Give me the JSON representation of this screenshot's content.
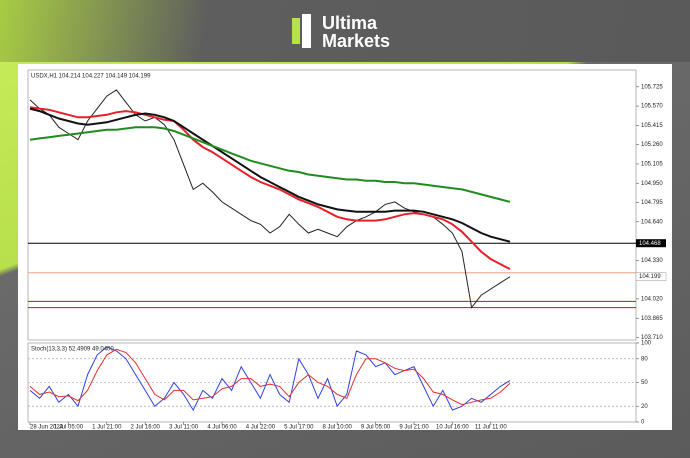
{
  "brand": {
    "line1": "Ultima",
    "line2": "Markets"
  },
  "chart_data": [
    {
      "type": "line",
      "title": "USDX,H1 104.214 104.227 104.149 104.199",
      "categories": [
        "28 Jun 2024",
        null,
        null,
        null,
        "1 Jul 05:00",
        null,
        null,
        null,
        "1 Jul 21:00",
        null,
        null,
        null,
        "2 Jul 16:00",
        null,
        null,
        null,
        "3 Jul 11:00",
        null,
        null,
        null,
        "4 Jul 06:00",
        null,
        null,
        null,
        "4 Jul 22:00",
        null,
        null,
        null,
        "5 Jul 17:00",
        null,
        null,
        null,
        "8 Jul 10:00",
        null,
        null,
        null,
        "9 Jul 05:00",
        null,
        null,
        null,
        "9 Jul 21:00",
        null,
        null,
        null,
        "10 Jul 16:00",
        null,
        null,
        null,
        "11 Jul 11:00",
        null,
        null
      ],
      "series": [
        {
          "color": "#222222",
          "width": 1,
          "values": [
            105.62,
            105.55,
            105.5,
            105.4,
            105.35,
            105.3,
            105.45,
            105.55,
            105.65,
            105.7,
            105.6,
            105.5,
            105.45,
            105.48,
            105.42,
            105.3,
            105.1,
            104.9,
            104.95,
            104.88,
            104.8,
            104.75,
            104.7,
            104.65,
            104.62,
            104.55,
            104.6,
            104.7,
            104.62,
            104.55,
            104.58,
            104.55,
            104.52,
            104.6,
            104.65,
            104.68,
            104.72,
            104.78,
            104.8,
            104.75,
            104.72,
            104.7,
            104.68,
            104.62,
            104.55,
            104.4,
            103.95,
            104.05,
            104.1,
            104.15,
            104.199
          ]
        },
        {
          "color": "#e8202a",
          "width": 2,
          "values": [
            105.56,
            105.55,
            105.54,
            105.52,
            105.5,
            105.48,
            105.48,
            105.49,
            105.5,
            105.52,
            105.53,
            105.52,
            105.5,
            105.48,
            105.46,
            105.45,
            105.38,
            105.3,
            105.24,
            105.2,
            105.15,
            105.1,
            105.05,
            105.0,
            104.96,
            104.93,
            104.9,
            104.86,
            104.82,
            104.79,
            104.76,
            104.72,
            104.68,
            104.66,
            104.65,
            104.65,
            104.65,
            104.66,
            104.68,
            104.7,
            104.71,
            104.7,
            104.68,
            104.66,
            104.62,
            104.56,
            104.48,
            104.4,
            104.34,
            104.3,
            104.26
          ]
        },
        {
          "color": "#111111",
          "width": 2,
          "values": [
            105.55,
            105.53,
            105.5,
            105.47,
            105.45,
            105.43,
            105.42,
            105.43,
            105.44,
            105.46,
            105.48,
            105.5,
            105.51,
            105.5,
            105.48,
            105.45,
            105.4,
            105.35,
            105.3,
            105.25,
            105.2,
            105.15,
            105.1,
            105.05,
            105.0,
            104.96,
            104.92,
            104.88,
            104.84,
            104.81,
            104.78,
            104.76,
            104.74,
            104.73,
            104.72,
            104.72,
            104.72,
            104.72,
            104.73,
            104.73,
            104.73,
            104.72,
            104.7,
            104.68,
            104.66,
            104.63,
            104.59,
            104.55,
            104.52,
            104.5,
            104.48
          ]
        },
        {
          "color": "#1e8c1e",
          "width": 2,
          "values": [
            105.3,
            105.31,
            105.32,
            105.33,
            105.34,
            105.35,
            105.36,
            105.37,
            105.38,
            105.38,
            105.39,
            105.4,
            105.4,
            105.4,
            105.39,
            105.37,
            105.34,
            105.31,
            105.28,
            105.25,
            105.22,
            105.19,
            105.16,
            105.13,
            105.11,
            105.09,
            105.07,
            105.05,
            105.04,
            105.02,
            105.01,
            105.0,
            104.99,
            104.98,
            104.98,
            104.97,
            104.97,
            104.96,
            104.96,
            104.95,
            104.95,
            104.94,
            104.93,
            104.92,
            104.91,
            104.9,
            104.88,
            104.86,
            104.84,
            104.82,
            104.8
          ]
        }
      ],
      "levels": [
        {
          "value": 104.468,
          "color": "#000000",
          "label": "104.468"
        },
        {
          "value": 104.23,
          "color": "#f0a080"
        },
        {
          "value": 104.0,
          "color": "#d01010"
        },
        {
          "value": 103.95,
          "color": "#d01010"
        }
      ],
      "last_price": {
        "value": 104.199,
        "label": "104.199"
      },
      "ylim": [
        103.69,
        105.86
      ],
      "yticks": [
        {
          "value": 103.71,
          "label": "103.710"
        },
        {
          "value": 103.865,
          "label": "103.865"
        },
        {
          "value": 104.02,
          "label": "104.020"
        },
        {
          "value": 104.33,
          "label": "104.330"
        },
        {
          "value": 104.64,
          "label": "104.640"
        },
        {
          "value": 104.795,
          "label": "104.795"
        },
        {
          "value": 104.95,
          "label": "104.950"
        },
        {
          "value": 105.105,
          "label": "105.105"
        },
        {
          "value": 105.26,
          "label": "105.260"
        },
        {
          "value": 105.415,
          "label": "105.415"
        },
        {
          "value": 105.57,
          "label": "105.570"
        },
        {
          "value": 105.725,
          "label": "105.725"
        }
      ]
    },
    {
      "type": "line",
      "title": "Stoch(13,3,3) 52.4909 49.0400",
      "series": [
        {
          "color": "#3040e0",
          "width": 1,
          "values": [
            40,
            30,
            45,
            25,
            35,
            20,
            60,
            85,
            95,
            90,
            80,
            60,
            40,
            20,
            30,
            50,
            35,
            15,
            40,
            30,
            55,
            40,
            70,
            50,
            30,
            60,
            35,
            25,
            80,
            60,
            30,
            55,
            20,
            35,
            90,
            85,
            70,
            75,
            60,
            65,
            70,
            45,
            20,
            40,
            15,
            20,
            30,
            25,
            35,
            45,
            52.4909
          ]
        },
        {
          "color": "#e03030",
          "width": 1,
          "values": [
            45,
            35,
            38,
            32,
            33,
            27,
            40,
            65,
            85,
            92,
            88,
            75,
            55,
            35,
            28,
            40,
            40,
            28,
            30,
            32,
            42,
            45,
            55,
            55,
            45,
            48,
            45,
            32,
            50,
            60,
            50,
            45,
            35,
            30,
            60,
            80,
            80,
            75,
            68,
            65,
            67,
            55,
            38,
            35,
            28,
            22,
            25,
            28,
            30,
            38,
            49.04
          ]
        }
      ],
      "ylim": [
        0,
        100
      ],
      "yticks": [
        0,
        20,
        50,
        80,
        100
      ]
    }
  ]
}
